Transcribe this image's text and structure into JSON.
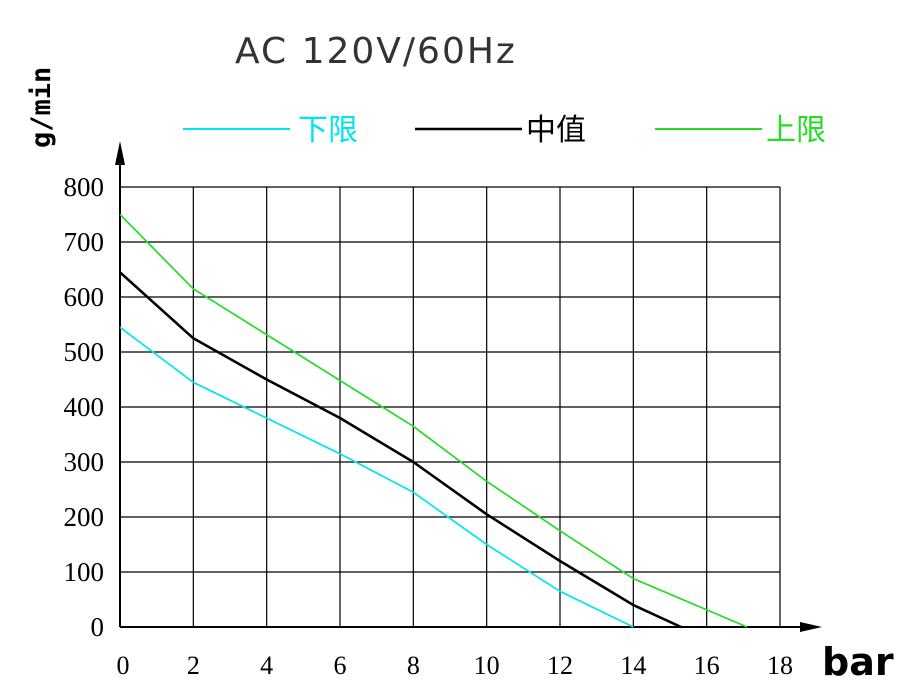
{
  "chart_data": {
    "type": "line",
    "title": "AC 120V/60Hz",
    "xlabel": "bar",
    "ylabel": "g/min",
    "x_ticks": [
      "0",
      "2",
      "4",
      "6",
      "8",
      "10",
      "12",
      "14",
      "16",
      "18"
    ],
    "y_ticks": [
      "0",
      "100",
      "200",
      "300",
      "400",
      "500",
      "600",
      "700",
      "800"
    ],
    "xlim": [
      0,
      18
    ],
    "ylim": [
      0,
      800
    ],
    "grid": true,
    "legend_position": "top",
    "series": [
      {
        "name": "下限",
        "color": "#00e5ee",
        "points": [
          [
            0,
            545
          ],
          [
            2,
            445
          ],
          [
            6,
            315
          ],
          [
            8,
            245
          ],
          [
            10,
            150
          ],
          [
            12,
            65
          ],
          [
            14,
            0
          ]
        ]
      },
      {
        "name": "中值",
        "color": "#000000",
        "points": [
          [
            0,
            645
          ],
          [
            2,
            525
          ],
          [
            4,
            450
          ],
          [
            6,
            380
          ],
          [
            8,
            300
          ],
          [
            10,
            205
          ],
          [
            12,
            120
          ],
          [
            14,
            40
          ],
          [
            15.3,
            0
          ]
        ]
      },
      {
        "name": "上限",
        "color": "#22dd22",
        "points": [
          [
            0,
            750
          ],
          [
            2,
            615
          ],
          [
            8,
            365
          ],
          [
            10,
            265
          ],
          [
            12,
            175
          ],
          [
            14,
            88
          ],
          [
            17.1,
            0
          ]
        ]
      }
    ]
  }
}
